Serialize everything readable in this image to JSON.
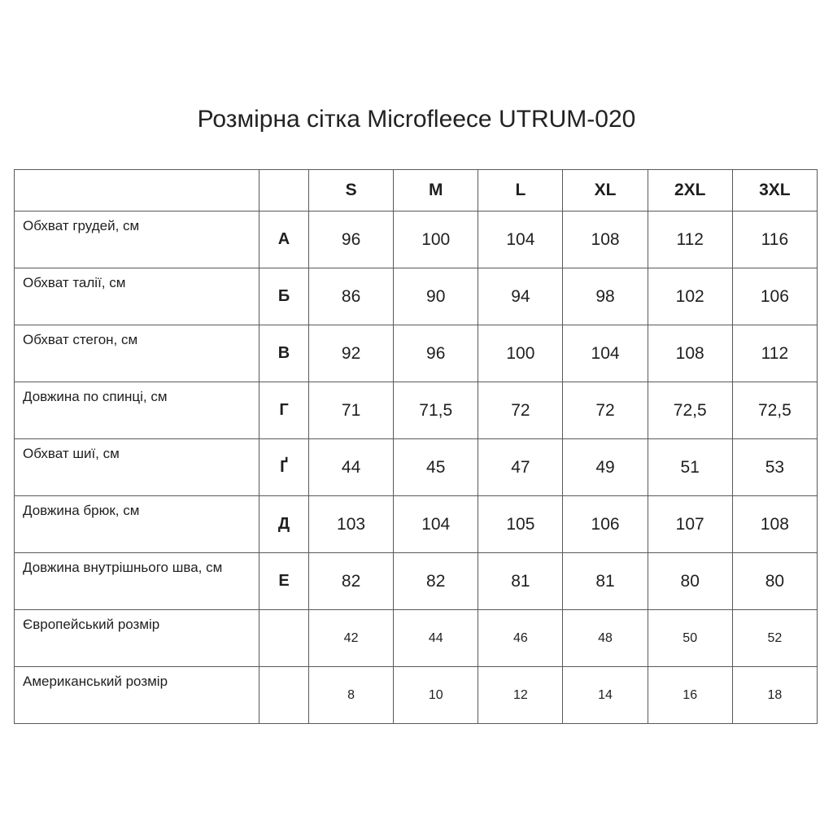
{
  "title": "Розмірна сітка Microfleece UTRUM-020",
  "chart_data": {
    "type": "table",
    "title": "Розмірна сітка Microfleece UTRUM-020",
    "size_columns": [
      "S",
      "M",
      "L",
      "XL",
      "2XL",
      "3XL"
    ],
    "rows": [
      {
        "label": "Обхват грудей, см",
        "letter": "А",
        "small": false,
        "values": [
          "96",
          "100",
          "104",
          "108",
          "112",
          "116"
        ]
      },
      {
        "label": "Обхват талії, см",
        "letter": "Б",
        "small": false,
        "values": [
          "86",
          "90",
          "94",
          "98",
          "102",
          "106"
        ]
      },
      {
        "label": "Обхват стегон, см",
        "letter": "В",
        "small": false,
        "values": [
          "92",
          "96",
          "100",
          "104",
          "108",
          "112"
        ]
      },
      {
        "label": "Довжина по спинці, см",
        "letter": "Г",
        "small": false,
        "values": [
          "71",
          "71,5",
          "72",
          "72",
          "72,5",
          "72,5"
        ]
      },
      {
        "label": "Обхват шиї, см",
        "letter": "Ґ",
        "small": false,
        "values": [
          "44",
          "45",
          "47",
          "49",
          "51",
          "53"
        ]
      },
      {
        "label": "Довжина брюк, см",
        "letter": "Д",
        "small": false,
        "values": [
          "103",
          "104",
          "105",
          "106",
          "107",
          "108"
        ]
      },
      {
        "label": "Довжина внутрішнього шва, см",
        "letter": "Е",
        "small": false,
        "values": [
          "82",
          "82",
          "81",
          "81",
          "80",
          "80"
        ]
      },
      {
        "label": "Європейський розмір",
        "letter": "",
        "small": true,
        "values": [
          "42",
          "44",
          "46",
          "48",
          "50",
          "52"
        ]
      },
      {
        "label": "Американський розмір",
        "letter": "",
        "small": true,
        "values": [
          "8",
          "10",
          "12",
          "14",
          "16",
          "18"
        ]
      }
    ]
  },
  "colors": {
    "background": "#ffffff",
    "text": "#1f1f1f",
    "border": "#595959"
  }
}
